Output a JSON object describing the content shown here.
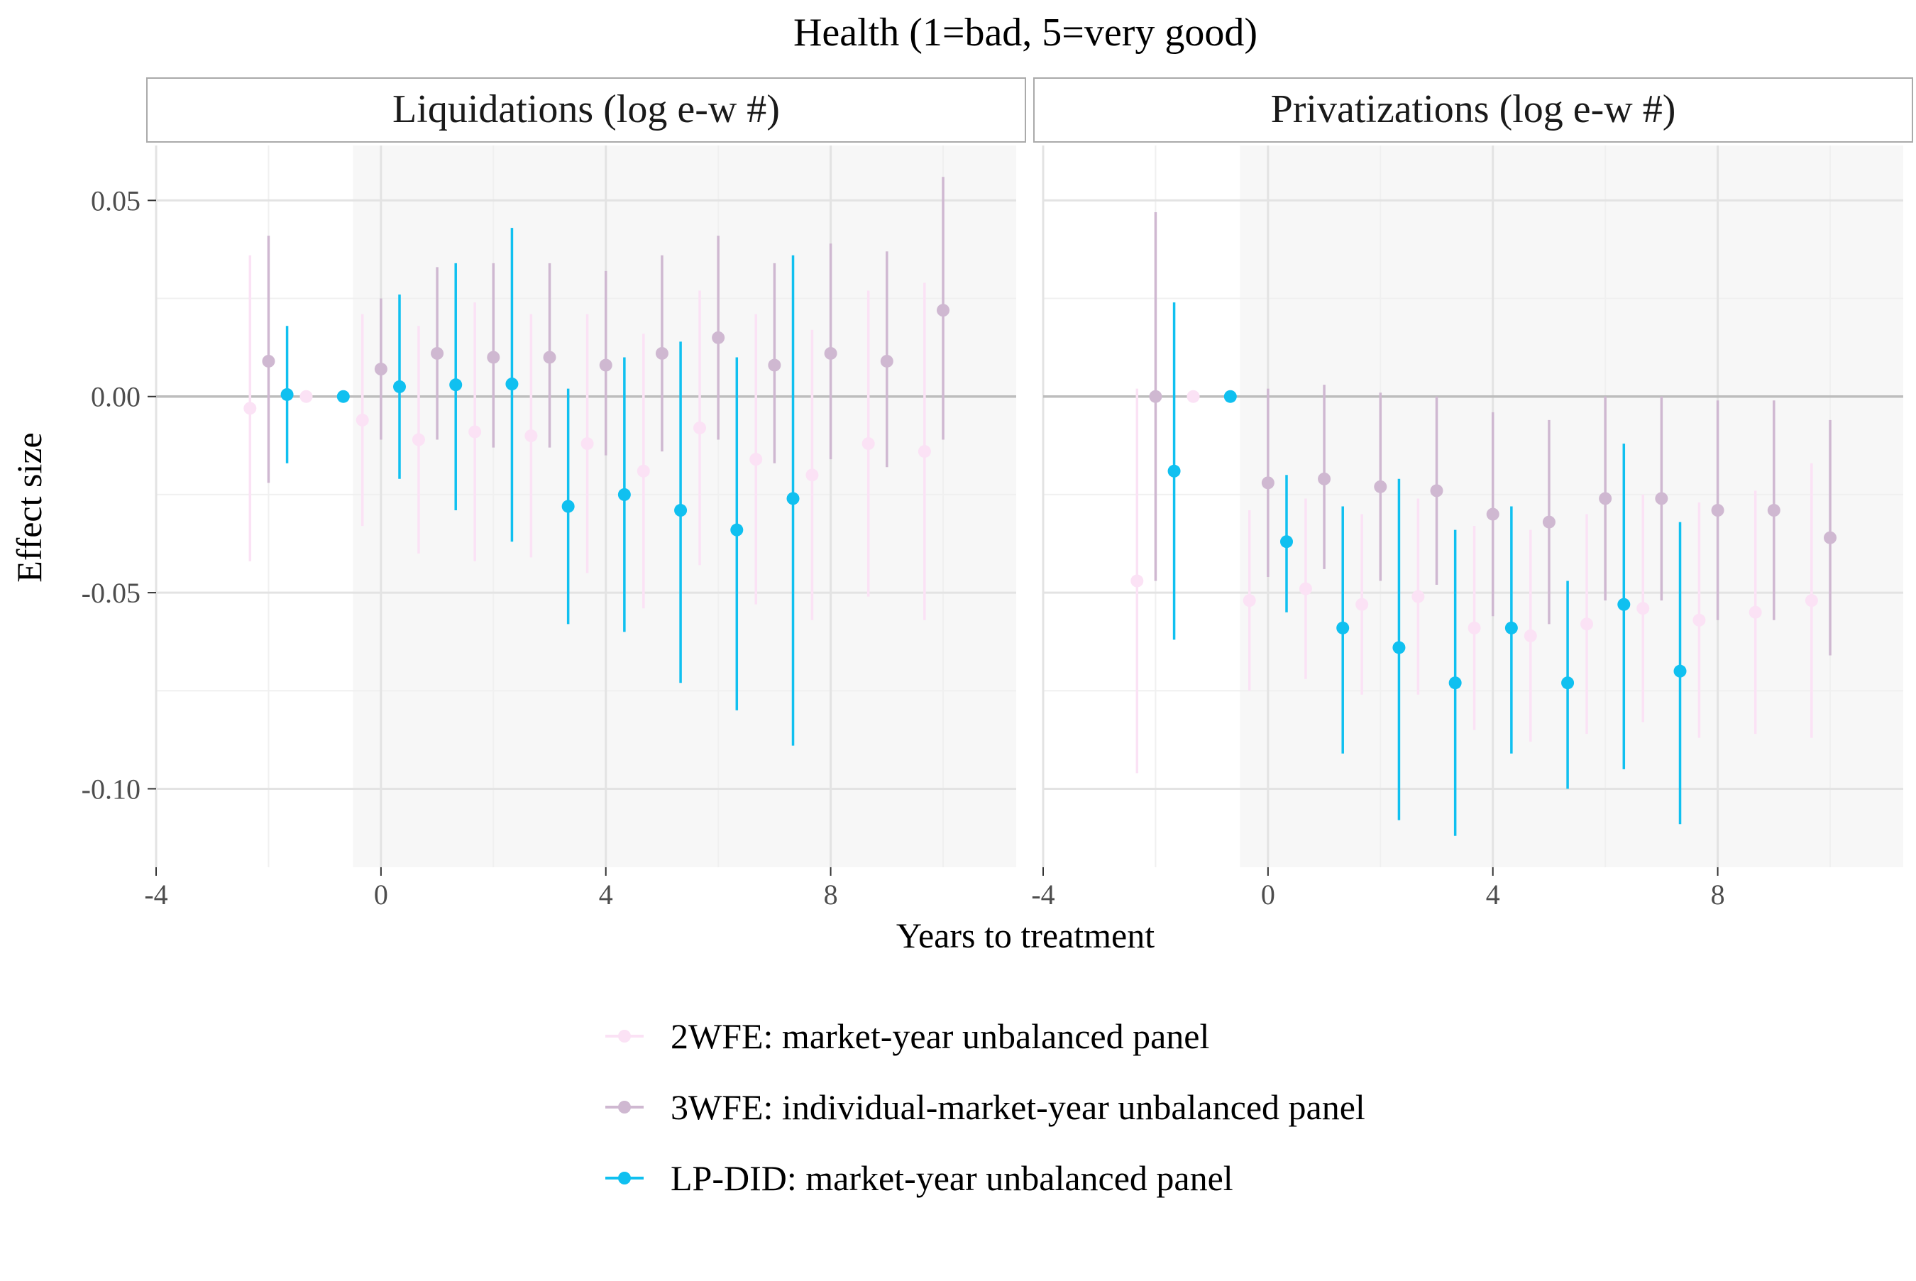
{
  "chart_data": {
    "type": "scatter",
    "title": "Health (1=bad, 5=very good)",
    "xlabel": "Years to treatment",
    "ylabel": "Effect size",
    "xlim": [
      -4,
      11.3
    ],
    "ylim": [
      -0.12,
      0.064
    ],
    "x_ticks": [
      -4,
      0,
      4,
      8
    ],
    "y_ticks": [
      0.05,
      0.0,
      -0.05,
      -0.1
    ],
    "x_tick_labels": [
      "-4",
      "0",
      "4",
      "8"
    ],
    "y_tick_labels": [
      "0.05",
      "0.00",
      "-0.05",
      "-0.10"
    ],
    "grid": true,
    "shaded_region_from_x": -0.5,
    "reference_line_y": 0,
    "legend_position": "bottom",
    "legend": [
      {
        "series": "2WFE",
        "label": "2WFE: market-year unbalanced panel",
        "color": "#fbe2f5"
      },
      {
        "series": "3WFE",
        "label": "3WFE: individual-market-year unbalanced panel",
        "color": "#cfb8d1"
      },
      {
        "series": "LPDID",
        "label": "LP-DID: market-year unbalanced panel",
        "color": "#10c0f0"
      }
    ],
    "panels": [
      {
        "title": "Liquidations (log e-w #)",
        "series": [
          {
            "key": "2WFE",
            "points": [
              {
                "x": -2.33,
                "y": -0.003,
                "lo": -0.042,
                "hi": 0.036
              },
              {
                "x": -1.33,
                "y": 0.0,
                "lo": 0.0,
                "hi": 0.0
              },
              {
                "x": -0.33,
                "y": -0.006,
                "lo": -0.033,
                "hi": 0.021
              },
              {
                "x": 0.67,
                "y": -0.011,
                "lo": -0.04,
                "hi": 0.018
              },
              {
                "x": 1.67,
                "y": -0.009,
                "lo": -0.042,
                "hi": 0.024
              },
              {
                "x": 2.67,
                "y": -0.01,
                "lo": -0.041,
                "hi": 0.021
              },
              {
                "x": 3.67,
                "y": -0.012,
                "lo": -0.045,
                "hi": 0.021
              },
              {
                "x": 4.67,
                "y": -0.019,
                "lo": -0.054,
                "hi": 0.016
              },
              {
                "x": 5.67,
                "y": -0.008,
                "lo": -0.043,
                "hi": 0.027
              },
              {
                "x": 6.67,
                "y": -0.016,
                "lo": -0.053,
                "hi": 0.021
              },
              {
                "x": 7.67,
                "y": -0.02,
                "lo": -0.057,
                "hi": 0.017
              },
              {
                "x": 8.67,
                "y": -0.012,
                "lo": -0.051,
                "hi": 0.027
              },
              {
                "x": 9.67,
                "y": -0.014,
                "lo": -0.057,
                "hi": 0.029
              }
            ]
          },
          {
            "key": "3WFE",
            "points": [
              {
                "x": -2.0,
                "y": 0.009,
                "lo": -0.022,
                "hi": 0.041
              },
              {
                "x": 0.0,
                "y": 0.007,
                "lo": -0.011,
                "hi": 0.025
              },
              {
                "x": 1.0,
                "y": 0.011,
                "lo": -0.011,
                "hi": 0.033
              },
              {
                "x": 2.0,
                "y": 0.01,
                "lo": -0.013,
                "hi": 0.034
              },
              {
                "x": 3.0,
                "y": 0.01,
                "lo": -0.013,
                "hi": 0.034
              },
              {
                "x": 4.0,
                "y": 0.008,
                "lo": -0.015,
                "hi": 0.032
              },
              {
                "x": 5.0,
                "y": 0.011,
                "lo": -0.014,
                "hi": 0.036
              },
              {
                "x": 6.0,
                "y": 0.015,
                "lo": -0.011,
                "hi": 0.041
              },
              {
                "x": 7.0,
                "y": 0.008,
                "lo": -0.017,
                "hi": 0.034
              },
              {
                "x": 8.0,
                "y": 0.011,
                "lo": -0.016,
                "hi": 0.039
              },
              {
                "x": 9.0,
                "y": 0.009,
                "lo": -0.018,
                "hi": 0.037
              },
              {
                "x": 10.0,
                "y": 0.022,
                "lo": -0.011,
                "hi": 0.056
              }
            ]
          },
          {
            "key": "LPDID",
            "points": [
              {
                "x": -1.67,
                "y": 0.0005,
                "lo": -0.017,
                "hi": 0.018
              },
              {
                "x": -0.67,
                "y": 0.0,
                "lo": 0.0,
                "hi": 0.0
              },
              {
                "x": 0.33,
                "y": 0.0025,
                "lo": -0.021,
                "hi": 0.026
              },
              {
                "x": 1.33,
                "y": 0.003,
                "lo": -0.029,
                "hi": 0.034
              },
              {
                "x": 2.33,
                "y": 0.0032,
                "lo": -0.037,
                "hi": 0.043
              },
              {
                "x": 3.33,
                "y": -0.028,
                "lo": -0.058,
                "hi": 0.002
              },
              {
                "x": 4.33,
                "y": -0.025,
                "lo": -0.06,
                "hi": 0.01
              },
              {
                "x": 5.33,
                "y": -0.029,
                "lo": -0.073,
                "hi": 0.014
              },
              {
                "x": 6.33,
                "y": -0.034,
                "lo": -0.08,
                "hi": 0.01
              },
              {
                "x": 7.33,
                "y": -0.026,
                "lo": -0.089,
                "hi": 0.036
              }
            ]
          }
        ]
      },
      {
        "title": "Privatizations (log e-w #)",
        "series": [
          {
            "key": "2WFE",
            "points": [
              {
                "x": -2.33,
                "y": -0.047,
                "lo": -0.096,
                "hi": 0.002
              },
              {
                "x": -1.33,
                "y": 0.0,
                "lo": 0.0,
                "hi": 0.0
              },
              {
                "x": -0.33,
                "y": -0.052,
                "lo": -0.075,
                "hi": -0.029
              },
              {
                "x": 0.67,
                "y": -0.049,
                "lo": -0.072,
                "hi": -0.026
              },
              {
                "x": 1.67,
                "y": -0.053,
                "lo": -0.076,
                "hi": -0.03
              },
              {
                "x": 2.67,
                "y": -0.051,
                "lo": -0.076,
                "hi": -0.026
              },
              {
                "x": 3.67,
                "y": -0.059,
                "lo": -0.085,
                "hi": -0.033
              },
              {
                "x": 4.67,
                "y": -0.061,
                "lo": -0.088,
                "hi": -0.034
              },
              {
                "x": 5.67,
                "y": -0.058,
                "lo": -0.086,
                "hi": -0.03
              },
              {
                "x": 6.67,
                "y": -0.054,
                "lo": -0.083,
                "hi": -0.025
              },
              {
                "x": 7.67,
                "y": -0.057,
                "lo": -0.087,
                "hi": -0.027
              },
              {
                "x": 8.67,
                "y": -0.055,
                "lo": -0.086,
                "hi": -0.024
              },
              {
                "x": 9.67,
                "y": -0.052,
                "lo": -0.087,
                "hi": -0.017
              }
            ]
          },
          {
            "key": "3WFE",
            "points": [
              {
                "x": -2.0,
                "y": 0.0,
                "lo": -0.047,
                "hi": 0.047
              },
              {
                "x": 0.0,
                "y": -0.022,
                "lo": -0.046,
                "hi": 0.002
              },
              {
                "x": 1.0,
                "y": -0.021,
                "lo": -0.044,
                "hi": 0.003
              },
              {
                "x": 2.0,
                "y": -0.023,
                "lo": -0.047,
                "hi": 0.001
              },
              {
                "x": 3.0,
                "y": -0.024,
                "lo": -0.048,
                "hi": 0.0
              },
              {
                "x": 4.0,
                "y": -0.03,
                "lo": -0.056,
                "hi": -0.004
              },
              {
                "x": 5.0,
                "y": -0.032,
                "lo": -0.058,
                "hi": -0.006
              },
              {
                "x": 6.0,
                "y": -0.026,
                "lo": -0.052,
                "hi": 0.0
              },
              {
                "x": 7.0,
                "y": -0.026,
                "lo": -0.052,
                "hi": 0.0
              },
              {
                "x": 8.0,
                "y": -0.029,
                "lo": -0.057,
                "hi": -0.001
              },
              {
                "x": 9.0,
                "y": -0.029,
                "lo": -0.057,
                "hi": -0.001
              },
              {
                "x": 10.0,
                "y": -0.036,
                "lo": -0.066,
                "hi": -0.006
              }
            ]
          },
          {
            "key": "LPDID",
            "points": [
              {
                "x": -1.67,
                "y": -0.019,
                "lo": -0.062,
                "hi": 0.024
              },
              {
                "x": -0.67,
                "y": 0.0,
                "lo": 0.0,
                "hi": 0.0
              },
              {
                "x": 0.33,
                "y": -0.037,
                "lo": -0.055,
                "hi": -0.02
              },
              {
                "x": 1.33,
                "y": -0.059,
                "lo": -0.091,
                "hi": -0.028
              },
              {
                "x": 2.33,
                "y": -0.064,
                "lo": -0.108,
                "hi": -0.021
              },
              {
                "x": 3.33,
                "y": -0.073,
                "lo": -0.112,
                "hi": -0.034
              },
              {
                "x": 4.33,
                "y": -0.059,
                "lo": -0.091,
                "hi": -0.028
              },
              {
                "x": 5.33,
                "y": -0.073,
                "lo": -0.1,
                "hi": -0.047
              },
              {
                "x": 6.33,
                "y": -0.053,
                "lo": -0.095,
                "hi": -0.012
              },
              {
                "x": 7.33,
                "y": -0.07,
                "lo": -0.109,
                "hi": -0.032
              }
            ]
          }
        ]
      }
    ]
  }
}
